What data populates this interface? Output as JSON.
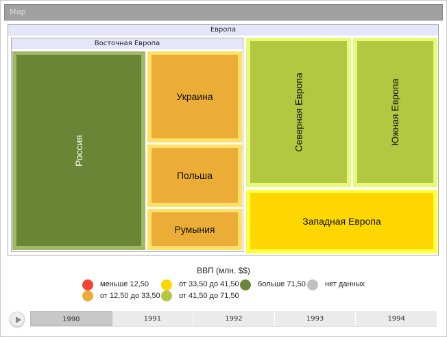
{
  "title": "Мир",
  "region": "Европа",
  "subregion": "Восточная Европа",
  "tiles": {
    "russia": "Россия",
    "ukraine": "Украина",
    "poland": "Польша",
    "romania": "Румыния",
    "north": "Северная Европа",
    "south": "Южная Европа",
    "west": "Западная Европа"
  },
  "legend": {
    "title": "ВВП (млн. $$)",
    "items": [
      {
        "label": "меньше 12,50",
        "color": "#f44336"
      },
      {
        "label": "от 12,50 до 33,50",
        "color": "#ebad35"
      },
      {
        "label": "от 33,50 до 41,50",
        "color": "#ffd700"
      },
      {
        "label": "от 41,50 до 71,50",
        "color": "#b2c840"
      },
      {
        "label": "больше 71,50",
        "color": "#6a8535"
      },
      {
        "label": "нет данных",
        "color": "#c0c0c0"
      }
    ]
  },
  "timeline": {
    "years": [
      "1990",
      "1991",
      "1992",
      "1993",
      "1994"
    ],
    "selected": "1990"
  }
}
